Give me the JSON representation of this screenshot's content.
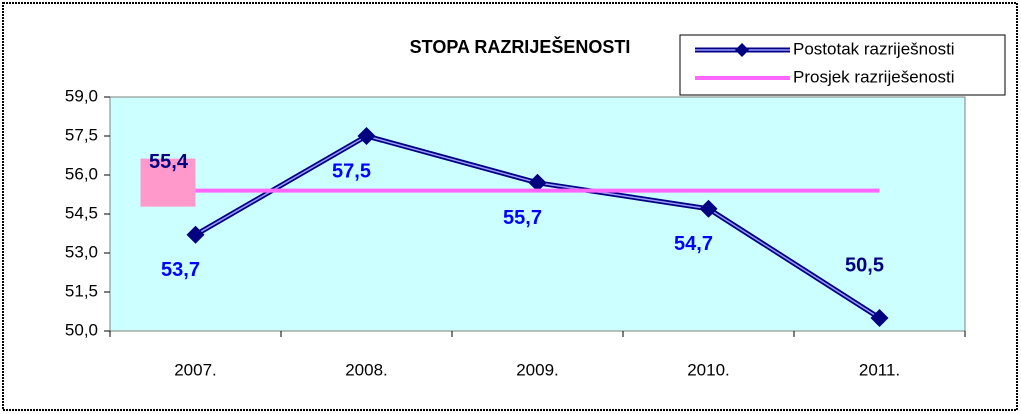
{
  "chart_data": {
    "type": "line",
    "title": "STOPA RAZRIJEŠENOSTI",
    "categories": [
      "2007.",
      "2008.",
      "2009.",
      "2010.",
      "2011."
    ],
    "series": [
      {
        "name": "Postotak razriješnosti",
        "color": "#000080",
        "values": [
          53.7,
          57.5,
          55.7,
          54.7,
          50.5
        ],
        "value_labels": [
          "53,7",
          "57,5",
          "55,7",
          "54,7",
          "50,5"
        ]
      },
      {
        "name": "Prosjek razriješenosti",
        "color": "#ff66ff",
        "values": [
          55.4,
          55.4,
          55.4,
          55.4,
          55.4
        ],
        "value_labels": [
          "55,4",
          null,
          null,
          null,
          null
        ]
      }
    ],
    "ylim": [
      50,
      59
    ],
    "yticks": [
      {
        "value": 50,
        "label": "50,0"
      },
      {
        "value": 51.5,
        "label": "51,5"
      },
      {
        "value": 53,
        "label": "53,0"
      },
      {
        "value": 54.5,
        "label": "54,5"
      },
      {
        "value": 56,
        "label": "56,0"
      },
      {
        "value": 57.5,
        "label": "57,5"
      },
      {
        "value": 59,
        "label": "59,0"
      }
    ],
    "legend": "top-right"
  }
}
